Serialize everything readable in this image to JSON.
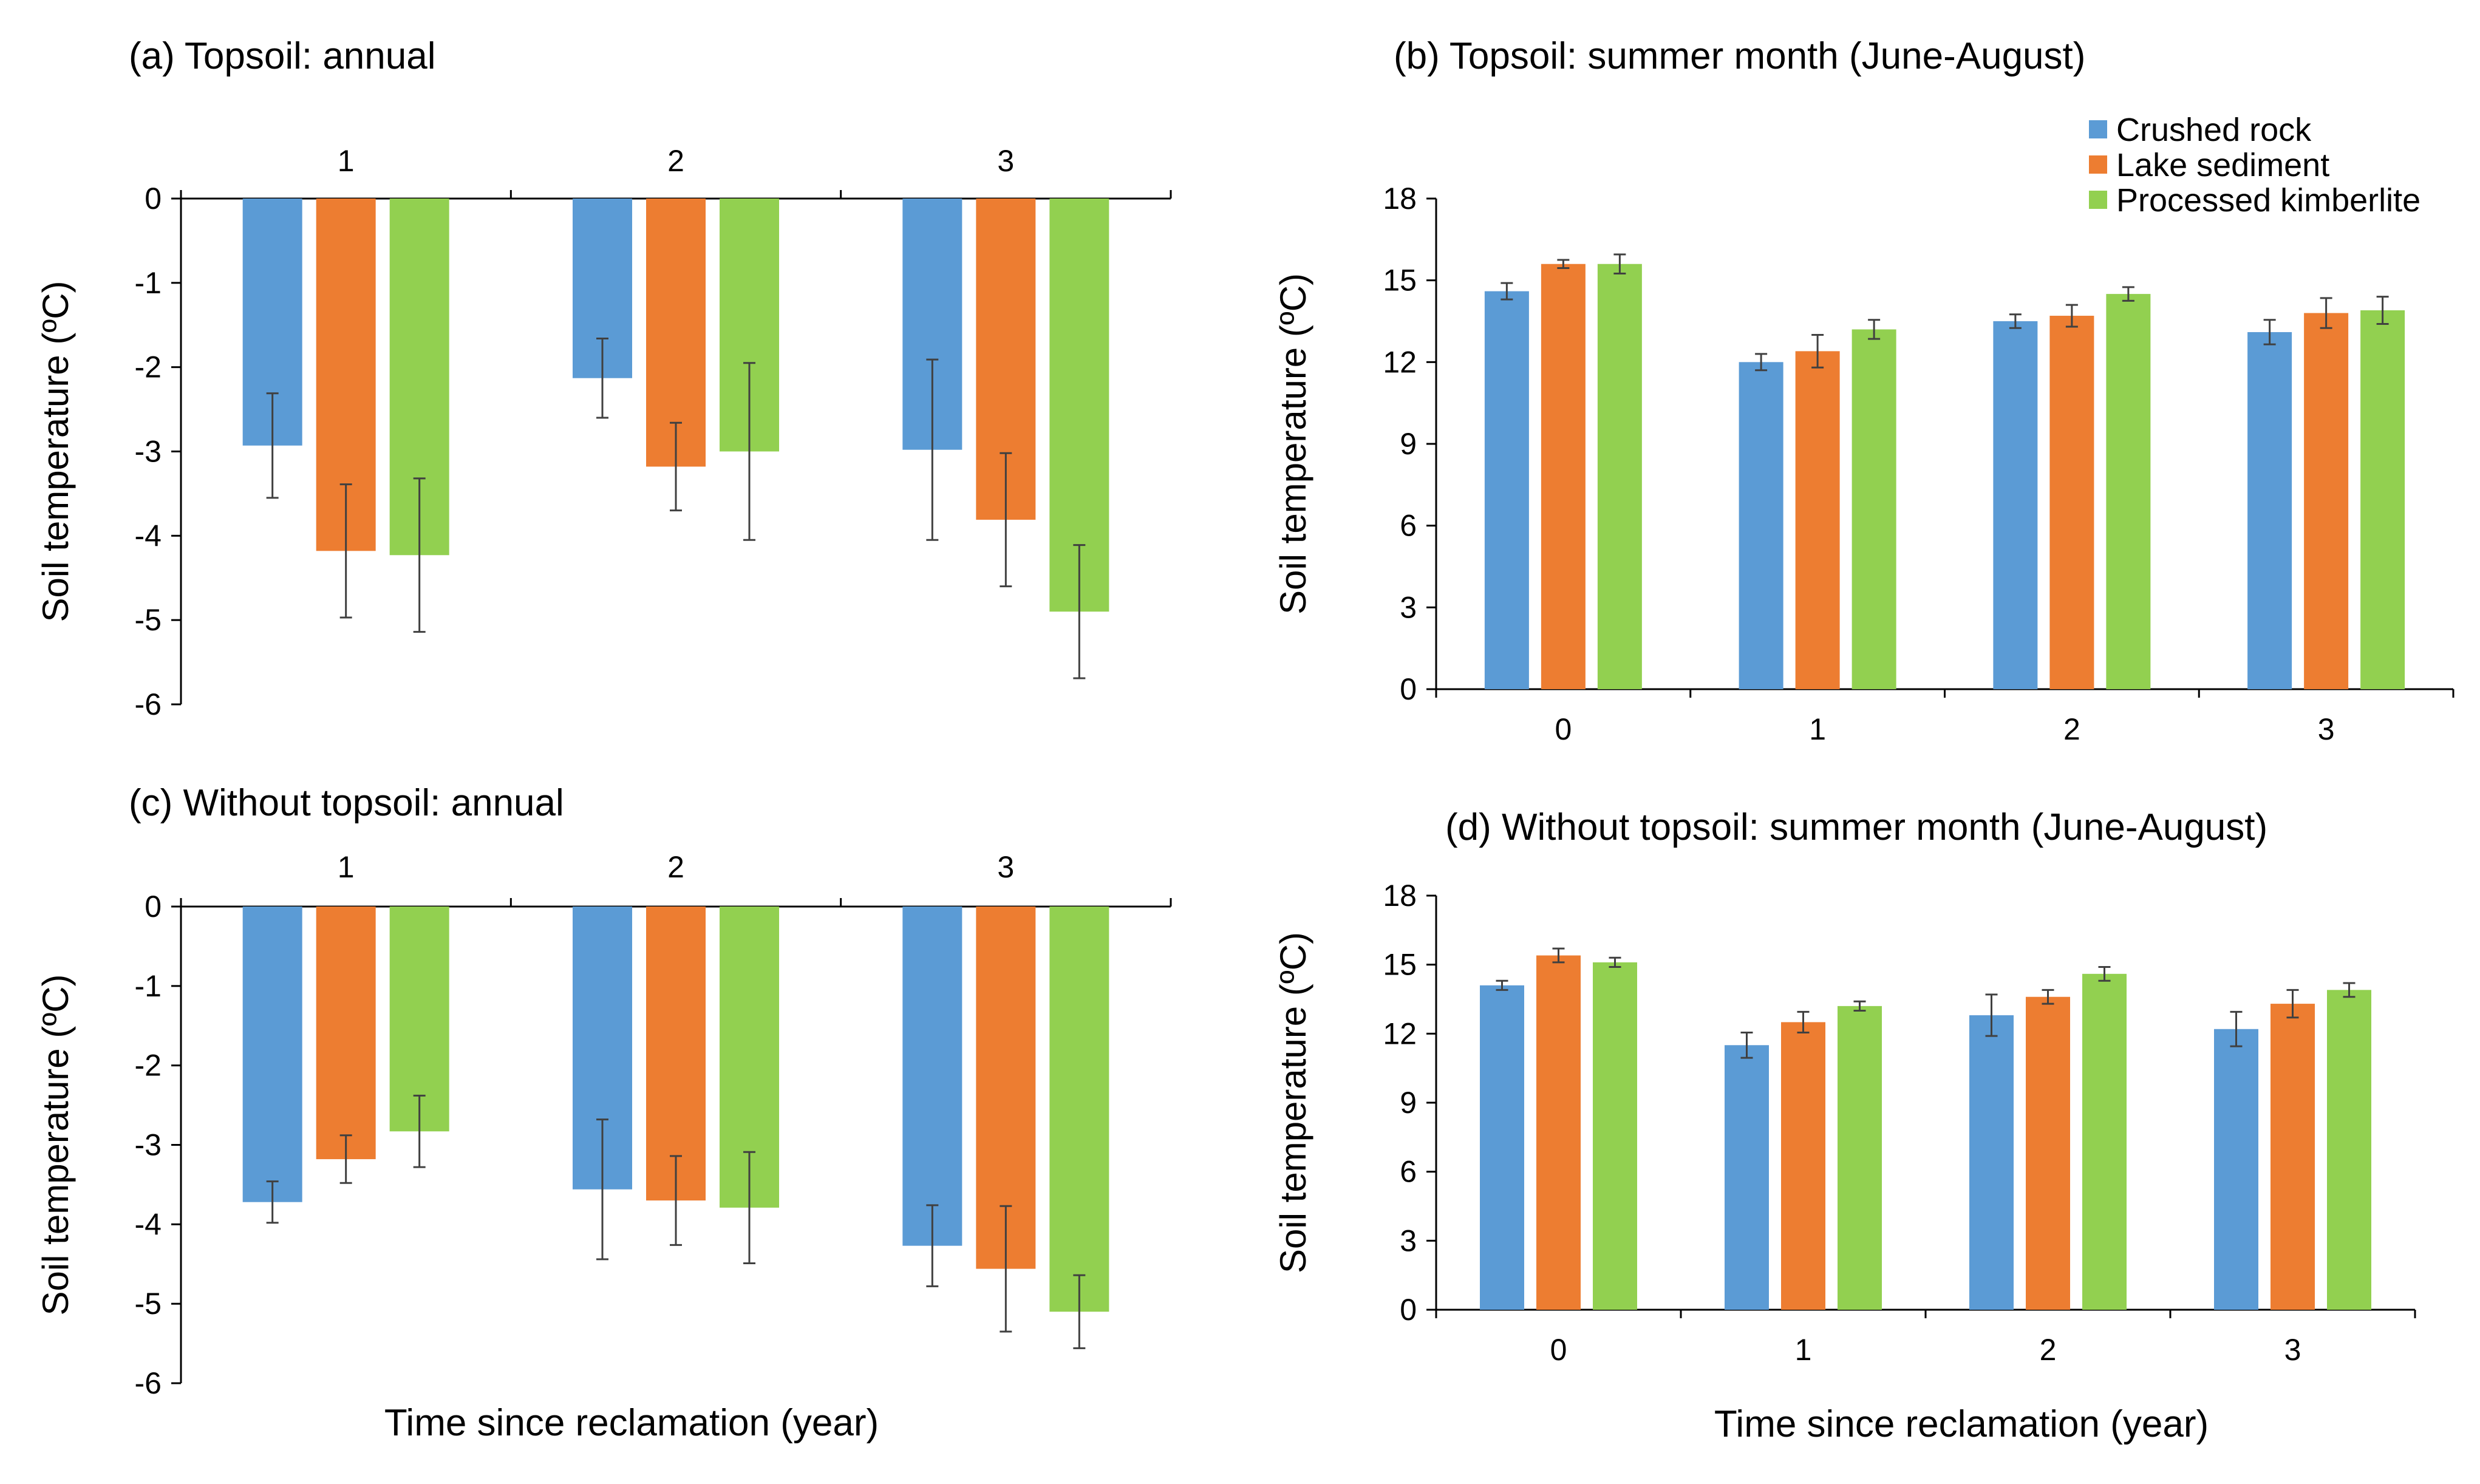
{
  "colors": {
    "crushed_rock": "#5B9BD5",
    "lake_sediment": "#ED7D31",
    "processed_kimberlite": "#92D050",
    "axis": "#000000",
    "error_bar": "#404040"
  },
  "legend": {
    "placement": "top-right of panel (b)",
    "items": [
      "Crushed rock",
      "Lake sediment",
      "Processed kimberlite"
    ]
  },
  "chart_data": [
    {
      "type": "bar",
      "title": "(a) Topsoil: annual",
      "ylabel": "Soil temperature (ºC)",
      "xlabel": "",
      "categories": [
        "1",
        "2",
        "3"
      ],
      "category_axis_position": "top",
      "ylim": [
        -6,
        0
      ],
      "yticks": [
        0,
        -1,
        -2,
        -3,
        -4,
        -5,
        -6
      ],
      "ytick_labels": [
        "0",
        "-1",
        "-2",
        "-3",
        "-4",
        "-5",
        "-6"
      ],
      "grid": false,
      "series": [
        {
          "name": "Crushed rock",
          "values": [
            -2.93,
            -2.13,
            -2.98
          ],
          "errors": [
            0.62,
            0.47,
            1.07
          ]
        },
        {
          "name": "Lake sediment",
          "values": [
            -4.18,
            -3.18,
            -3.81
          ],
          "errors": [
            0.79,
            0.52,
            0.79
          ]
        },
        {
          "name": "Processed kimberlite",
          "values": [
            -4.23,
            -3.0,
            -4.9
          ],
          "errors": [
            0.91,
            1.05,
            0.79
          ]
        }
      ]
    },
    {
      "type": "bar",
      "title": "(b) Topsoil: summer month (June-August)",
      "ylabel": "Soil temperature (ºC)",
      "xlabel": "",
      "categories": [
        "0",
        "1",
        "2",
        "3"
      ],
      "category_axis_position": "bottom",
      "ylim": [
        0,
        18
      ],
      "yticks": [
        0,
        3,
        6,
        9,
        12,
        15,
        18
      ],
      "ytick_labels": [
        "0",
        "3",
        "6",
        "9",
        "12",
        "15",
        "18"
      ],
      "grid": false,
      "series": [
        {
          "name": "Crushed rock",
          "values": [
            14.6,
            12.0,
            13.5,
            13.1
          ],
          "errors": [
            0.3,
            0.3,
            0.25,
            0.45
          ]
        },
        {
          "name": "Lake sediment",
          "values": [
            15.6,
            12.4,
            13.7,
            13.8
          ],
          "errors": [
            0.15,
            0.6,
            0.4,
            0.55
          ]
        },
        {
          "name": "Processed kimberlite",
          "values": [
            15.6,
            13.2,
            14.5,
            13.9
          ],
          "errors": [
            0.35,
            0.35,
            0.25,
            0.5
          ]
        }
      ]
    },
    {
      "type": "bar",
      "title": "(c) Without topsoil: annual",
      "ylabel": "Soil temperature (ºC)",
      "xlabel": "Time since reclamation (year)",
      "categories": [
        "1",
        "2",
        "3"
      ],
      "category_axis_position": "top",
      "ylim": [
        -6,
        0
      ],
      "yticks": [
        0,
        -1,
        -2,
        -3,
        -4,
        -5,
        -6
      ],
      "ytick_labels": [
        "0",
        "-1",
        "-2",
        "-3",
        "-4",
        "-5",
        "-6"
      ],
      "grid": false,
      "series": [
        {
          "name": "Crushed rock",
          "values": [
            -3.72,
            -3.56,
            -4.27
          ],
          "errors": [
            0.26,
            0.88,
            0.51
          ]
        },
        {
          "name": "Lake sediment",
          "values": [
            -3.18,
            -3.7,
            -4.56
          ],
          "errors": [
            0.3,
            0.56,
            0.79
          ]
        },
        {
          "name": "Processed kimberlite",
          "values": [
            -2.83,
            -3.79,
            -5.1
          ],
          "errors": [
            0.45,
            0.7,
            0.46
          ]
        }
      ]
    },
    {
      "type": "bar",
      "title": "(d) Without topsoil: summer month (June-August)",
      "ylabel": "Soil temperature (ºC)",
      "xlabel": "Time since reclamation (year)",
      "categories": [
        "0",
        "1",
        "2",
        "3"
      ],
      "category_axis_position": "bottom",
      "ylim": [
        0,
        18
      ],
      "yticks": [
        0,
        3,
        6,
        9,
        12,
        15,
        18
      ],
      "ytick_labels": [
        "0",
        "3",
        "6",
        "9",
        "12",
        "15",
        "18"
      ],
      "grid": false,
      "series": [
        {
          "name": "Crushed rock",
          "values": [
            14.1,
            11.5,
            12.8,
            12.2
          ],
          "errors": [
            0.2,
            0.55,
            0.9,
            0.75
          ]
        },
        {
          "name": "Lake sediment",
          "values": [
            15.4,
            12.5,
            13.6,
            13.3
          ],
          "errors": [
            0.3,
            0.45,
            0.3,
            0.6
          ]
        },
        {
          "name": "Processed kimberlite",
          "values": [
            15.1,
            13.2,
            14.6,
            13.9
          ],
          "errors": [
            0.2,
            0.2,
            0.3,
            0.3
          ]
        }
      ]
    }
  ]
}
